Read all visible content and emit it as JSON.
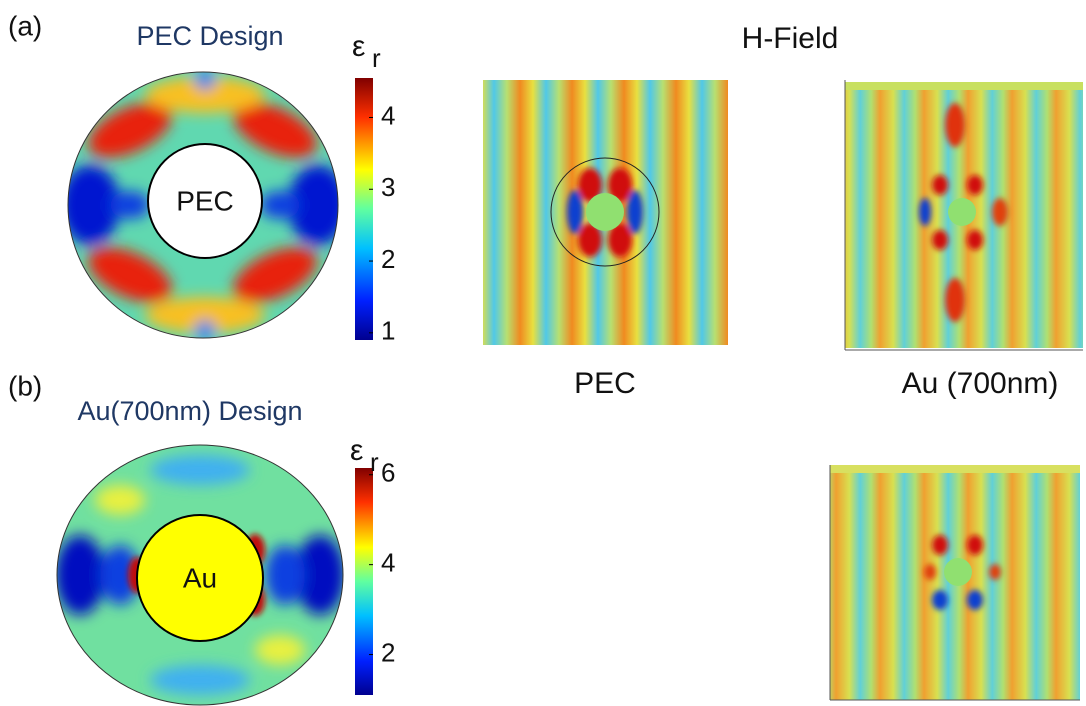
{
  "panel_a": {
    "label": "(a)",
    "title": "PEC Design",
    "core_label": "PEC",
    "colorbar": {
      "symbol": "ε",
      "subscript": "r",
      "limits": [
        0.9,
        4.55
      ],
      "ticks": [
        1,
        2,
        3,
        4
      ]
    }
  },
  "field": {
    "title": "H-Field",
    "captions": [
      "PEC",
      "Au (700nm)"
    ]
  },
  "panel_b": {
    "label": "(b)",
    "title": "Au(700nm) Design",
    "core_label": "Au",
    "colorbar": {
      "symbol": "ε",
      "subscript": "r",
      "limits": [
        1.1,
        6.15
      ],
      "ticks": [
        2,
        4,
        6
      ]
    }
  }
}
